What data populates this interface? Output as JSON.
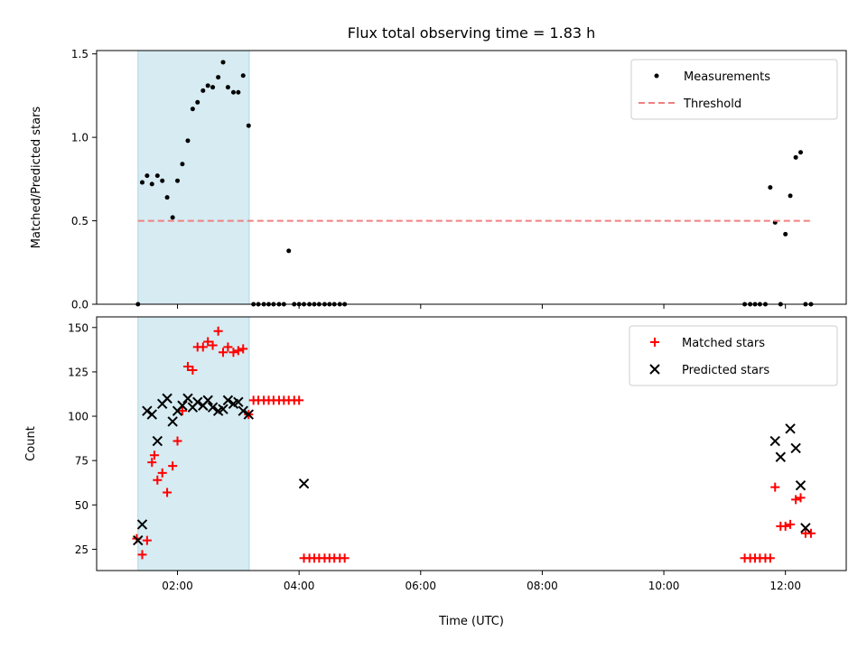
{
  "chart_data": [
    {
      "type": "scatter",
      "title": "Flux total observing time = 1.83 h",
      "xlabel": "",
      "ylabel": "Matched/Predicted stars",
      "xlim": [
        0.67,
        13.0
      ],
      "ylim": [
        0,
        1.52
      ],
      "yticks": [
        0.0,
        0.5,
        1.0,
        1.5
      ],
      "ytick_labels": [
        "0.0",
        "0.5",
        "1.0",
        "1.5"
      ],
      "xticks": [
        2,
        4,
        6,
        8,
        10,
        12
      ],
      "shaded_span": [
        1.35,
        3.18
      ],
      "legend_position": "upper-right",
      "series": [
        {
          "name": "Measurements",
          "marker": "dot",
          "color": "#000000",
          "x": [
            1.35,
            1.42,
            1.5,
            1.58,
            1.67,
            1.75,
            1.83,
            1.92,
            2.0,
            2.08,
            2.17,
            2.25,
            2.33,
            2.42,
            2.5,
            2.58,
            2.67,
            2.75,
            2.83,
            2.92,
            3.0,
            3.08,
            3.17,
            3.25,
            3.33,
            3.42,
            3.5,
            3.58,
            3.67,
            3.75,
            3.83,
            3.92,
            4.0,
            4.08,
            4.17,
            4.25,
            4.33,
            4.42,
            4.5,
            4.58,
            4.67,
            4.75,
            11.33,
            11.42,
            11.5,
            11.58,
            11.67,
            11.75,
            11.83,
            11.92,
            12.0,
            12.08,
            12.17,
            12.25,
            12.33,
            12.42
          ],
          "y": [
            0.0,
            0.73,
            0.77,
            0.72,
            0.77,
            0.74,
            0.64,
            0.52,
            0.74,
            0.84,
            0.98,
            1.17,
            1.21,
            1.28,
            1.31,
            1.3,
            1.36,
            1.45,
            1.3,
            1.27,
            1.27,
            1.37,
            1.07,
            0.0,
            0.0,
            0.0,
            0.0,
            0.0,
            0.0,
            0.0,
            0.32,
            0.0,
            0.0,
            0.0,
            0.0,
            0.0,
            0.0,
            0.0,
            0.0,
            0.0,
            0.0,
            0.0,
            0.0,
            0.0,
            0.0,
            0.0,
            0.0,
            0.7,
            0.49,
            0.0,
            0.42,
            0.65,
            0.88,
            0.91,
            0.0,
            0.0
          ]
        },
        {
          "name": "Threshold",
          "marker": "dashed-line",
          "color": "#f08080",
          "x": [
            1.35,
            12.45
          ],
          "y": [
            0.5,
            0.5
          ]
        }
      ]
    },
    {
      "type": "scatter",
      "title": "",
      "xlabel": "Time (UTC)",
      "ylabel": "Count",
      "xlim": [
        0.67,
        13.0
      ],
      "ylim": [
        13,
        156
      ],
      "yticks": [
        25,
        50,
        75,
        100,
        125,
        150
      ],
      "ytick_labels": [
        "25",
        "50",
        "75",
        "100",
        "125",
        "150"
      ],
      "xticks": [
        2,
        4,
        6,
        8,
        10,
        12
      ],
      "xtick_labels": [
        "02:00",
        "04:00",
        "06:00",
        "08:00",
        "10:00",
        "12:00"
      ],
      "shaded_span": [
        1.35,
        3.18
      ],
      "legend_position": "upper-right",
      "series": [
        {
          "name": "Matched stars",
          "marker": "plus",
          "color": "#ff0000",
          "x": [
            1.33,
            1.42,
            1.5,
            1.58,
            1.62,
            1.67,
            1.75,
            1.83,
            1.92,
            2.0,
            2.08,
            2.17,
            2.25,
            2.33,
            2.42,
            2.5,
            2.58,
            2.67,
            2.75,
            2.83,
            2.92,
            3.0,
            3.08,
            3.17,
            3.25,
            3.33,
            3.42,
            3.5,
            3.58,
            3.67,
            3.75,
            3.83,
            3.92,
            4.0,
            4.08,
            4.17,
            4.25,
            4.33,
            4.42,
            4.5,
            4.58,
            4.67,
            4.75,
            11.33,
            11.42,
            11.5,
            11.58,
            11.67,
            11.75,
            11.83,
            11.92,
            12.0,
            12.08,
            12.17,
            12.25,
            12.33,
            12.42
          ],
          "y": [
            31,
            22,
            30,
            74,
            78,
            64,
            68,
            57,
            72,
            86,
            103,
            128,
            126,
            139,
            139,
            142,
            140,
            148,
            136,
            139,
            136,
            137,
            138,
            101,
            109,
            109,
            109,
            109,
            109,
            109,
            109,
            109,
            109,
            109,
            20,
            20,
            20,
            20,
            20,
            20,
            20,
            20,
            20,
            20,
            20,
            20,
            20,
            20,
            20,
            60,
            38,
            38,
            39,
            53,
            54,
            34,
            34
          ]
        },
        {
          "name": "Predicted stars",
          "marker": "x",
          "color": "#000000",
          "x": [
            1.35,
            1.42,
            1.5,
            1.58,
            1.67,
            1.75,
            1.83,
            1.92,
            2.0,
            2.08,
            2.17,
            2.25,
            2.33,
            2.42,
            2.5,
            2.58,
            2.67,
            2.75,
            2.83,
            2.92,
            3.0,
            3.08,
            3.17,
            4.08,
            11.83,
            11.92,
            12.08,
            12.17,
            12.25,
            12.33
          ],
          "y": [
            30,
            39,
            103,
            101,
            86,
            107,
            110,
            97,
            103,
            106,
            110,
            105,
            108,
            106,
            109,
            105,
            103,
            104,
            109,
            107,
            108,
            103,
            101,
            62,
            86,
            77,
            93,
            82,
            61,
            37
          ]
        }
      ]
    }
  ]
}
